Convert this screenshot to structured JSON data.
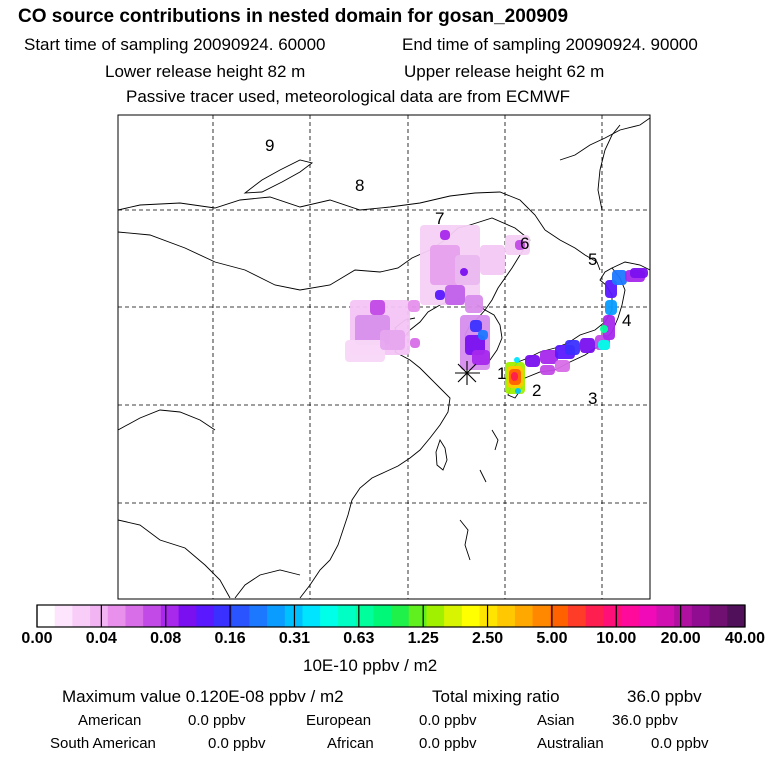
{
  "header": {
    "title": "CO  source contributions in nested domain for gosan_200909",
    "start": "Start time of sampling 20090924. 60000",
    "end": "End time of sampling 20090924. 90000",
    "lower": "Lower release height   82 m",
    "upper": "Upper release height   62 m",
    "tracer": "Passive tracer used, meteorological data are from ECMWF"
  },
  "regions": [
    "1",
    "2",
    "3",
    "4",
    "5",
    "6",
    "7",
    "8",
    "9"
  ],
  "colorbar": {
    "ticks": [
      "0.00",
      "0.04",
      "0.08",
      "0.16",
      "0.31",
      "0.63",
      "1.25",
      "2.50",
      "5.00",
      "10.00",
      "20.00",
      "40.00"
    ],
    "colors": [
      "#ffffff",
      "#fde6fd",
      "#f8cdf8",
      "#f2b4f2",
      "#e890ec",
      "#d86ee8",
      "#c24ae6",
      "#a828ec",
      "#7a10f0",
      "#5a18ff",
      "#3a30ff",
      "#2a54ff",
      "#1c78ff",
      "#0a9cff",
      "#00c0ff",
      "#00e4ff",
      "#00ffe8",
      "#00ffc4",
      "#00ff9c",
      "#00f878",
      "#20f04a",
      "#60f020",
      "#a0f000",
      "#d8f400",
      "#ffff00",
      "#ffe400",
      "#ffc800",
      "#ffa800",
      "#ff8800",
      "#ff6000",
      "#ff3c28",
      "#ff1e50",
      "#ff1078",
      "#ff0a9a",
      "#f00ab8",
      "#d010b0",
      "#b010a0",
      "#900c90",
      "#701070",
      "#50105a"
    ],
    "unit": "10E-10 ppbv / m2"
  },
  "summary": {
    "max_label": "Maximum value  0.120E-08 ppbv / m2",
    "total_label": "Total mixing ratio",
    "total_value": "36.0 ppbv",
    "rows": [
      [
        {
          "name": "American",
          "value": "0.0 ppbv"
        },
        {
          "name": "European",
          "value": "0.0 ppbv"
        },
        {
          "name": "Asian",
          "value": "36.0 ppbv"
        }
      ],
      [
        {
          "name": "South American",
          "value": "0.0 ppbv"
        },
        {
          "name": "African",
          "value": "0.0 ppbv"
        },
        {
          "name": "Australian",
          "value": "0.0 ppbv"
        }
      ]
    ]
  }
}
